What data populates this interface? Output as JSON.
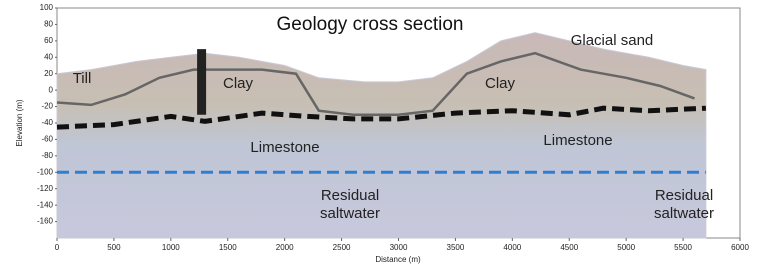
{
  "chart_data": {
    "type": "line",
    "title": "Geology cross section",
    "x_label": "Distance (m)",
    "y_label": "Elevation (m)",
    "annotations": [
      "Glacial sand",
      "Till",
      "Clay",
      "Clay",
      "Limestone",
      "Limestone",
      "Residual saltwater",
      "Residual saltwater"
    ],
    "xlim": [
      0,
      6000
    ],
    "xticks": [
      0,
      500,
      1000,
      1500,
      2000,
      2500,
      3000,
      3500,
      4000,
      4500,
      5000,
      5500,
      6000
    ],
    "ylim": [
      -180,
      100
    ],
    "yticks": [
      100,
      80,
      60,
      40,
      20,
      0,
      -20,
      -40,
      -60,
      -80,
      -100,
      -120,
      -140,
      -160
    ],
    "grid": false,
    "series": [
      {
        "color": "#c9c9d6",
        "fill": true,
        "x": [
          0,
          300,
          700,
          1000,
          1300,
          1600,
          2000,
          2300,
          2700,
          3000,
          3300,
          3600,
          3900,
          4200,
          4500,
          4800,
          5200,
          5500,
          5700
        ],
        "values": [
          20,
          25,
          35,
          40,
          45,
          40,
          30,
          15,
          10,
          10,
          15,
          35,
          60,
          70,
          60,
          50,
          40,
          30,
          25
        ]
      },
      {
        "color": "#666666",
        "width": 2.5,
        "x": [
          0,
          300,
          600,
          900,
          1200,
          1500,
          1800,
          2100,
          2300,
          2600,
          3000,
          3300,
          3600,
          3900,
          4200,
          4600,
          5000,
          5300,
          5600
        ],
        "values": [
          -15,
          -18,
          -5,
          15,
          25,
          25,
          25,
          20,
          -25,
          -30,
          -30,
          -25,
          20,
          35,
          45,
          25,
          15,
          5,
          -10
        ]
      },
      {
        "color": "#111111",
        "width": 5,
        "dash": true,
        "x": [
          0,
          500,
          1000,
          1300,
          1800,
          2200,
          2600,
          3000,
          3500,
          4000,
          4500,
          4800,
          5200,
          5700
        ],
        "values": [
          -45,
          -42,
          -32,
          -38,
          -28,
          -32,
          -35,
          -35,
          -28,
          -25,
          -30,
          -22,
          -25,
          -22
        ]
      },
      {
        "color": "#2f7fd0",
        "width": 3,
        "dash": true,
        "x": [
          0,
          5700
        ],
        "values": [
          -100,
          -100
        ]
      },
      {
        "color": "#222222",
        "width": 9,
        "x": [
          1270,
          1270
        ],
        "values": [
          50,
          -30
        ]
      }
    ]
  }
}
